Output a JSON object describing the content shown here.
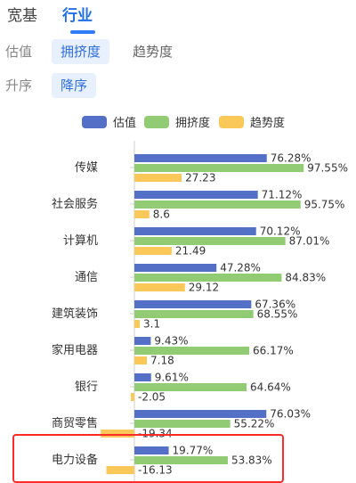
{
  "tabs": [
    {
      "label": "宽基",
      "active": false
    },
    {
      "label": "行业",
      "active": true
    }
  ],
  "metric_options": [
    {
      "label": "估值",
      "active": false
    },
    {
      "label": "拥挤度",
      "active": true
    },
    {
      "label": "趋势度",
      "active": false
    }
  ],
  "sort_options": [
    {
      "label": "升序",
      "active": false
    },
    {
      "label": "降序",
      "active": true
    }
  ],
  "highlighted_category": "电力设备",
  "chart_data": {
    "type": "bar",
    "orientation": "horizontal",
    "legend_position": "top",
    "categories": [
      "传媒",
      "社会服务",
      "计算机",
      "通信",
      "建筑装饰",
      "家用电器",
      "银行",
      "商贸零售",
      "电力设备"
    ],
    "series": [
      {
        "name": "估值",
        "color": "#5470c6",
        "unit": "%",
        "values": [
          76.28,
          71.12,
          70.12,
          47.28,
          67.36,
          9.43,
          9.61,
          76.03,
          19.77
        ]
      },
      {
        "name": "拥挤度",
        "color": "#91cc75",
        "unit": "%",
        "values": [
          97.55,
          95.75,
          87.01,
          84.83,
          68.55,
          66.17,
          64.64,
          55.22,
          53.83
        ]
      },
      {
        "name": "趋势度",
        "color": "#fac858",
        "unit": "",
        "values": [
          27.23,
          8.6,
          21.49,
          29.12,
          3.1,
          7.18,
          -2.05,
          -19.34,
          -16.13
        ]
      }
    ]
  }
}
